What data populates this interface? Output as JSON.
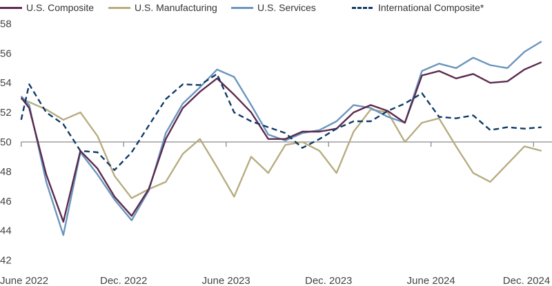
{
  "chart_data": {
    "type": "line",
    "title": "",
    "xlabel": "",
    "ylabel": "",
    "ylim": [
      42,
      58
    ],
    "yticks": [
      42,
      44,
      46,
      48,
      50,
      52,
      54,
      56,
      58
    ],
    "reference_line": 50,
    "grid": false,
    "legend_position": "top",
    "xticks": [
      {
        "date": "2022-06-01",
        "label": "June 2022"
      },
      {
        "date": "2022-12-01",
        "label": "Dec. 2022"
      },
      {
        "date": "2023-06-01",
        "label": "June 2023"
      },
      {
        "date": "2023-12-01",
        "label": "Dec. 2023"
      },
      {
        "date": "2024-06-01",
        "label": "June 2024"
      },
      {
        "date": "2024-12-01",
        "label": "Dec. 2024"
      }
    ],
    "x": [
      "2022-06-01",
      "2022-06-15",
      "2022-07-15",
      "2022-08-15",
      "2022-09-15",
      "2022-10-15",
      "2022-11-15",
      "2022-12-15",
      "2023-01-15",
      "2023-02-15",
      "2023-03-15",
      "2023-04-15",
      "2023-05-15",
      "2023-06-15",
      "2023-07-15",
      "2023-08-15",
      "2023-09-15",
      "2023-10-15",
      "2023-11-15",
      "2023-12-15",
      "2024-01-15",
      "2024-02-15",
      "2024-03-15",
      "2024-04-15",
      "2024-05-15",
      "2024-06-15",
      "2024-07-15",
      "2024-08-15",
      "2024-09-15",
      "2024-10-15",
      "2024-11-15",
      "2024-12-15"
    ],
    "series": [
      {
        "name": "U.S. Composite",
        "color": "#5b2a4c",
        "dashed": false,
        "values": [
          53.0,
          52.3,
          47.8,
          44.6,
          49.4,
          48.2,
          46.3,
          45.0,
          46.8,
          50.2,
          52.3,
          53.4,
          54.3,
          53.2,
          52.0,
          50.2,
          50.2,
          50.7,
          50.7,
          50.9,
          52.0,
          52.5,
          52.1,
          51.3,
          54.5,
          54.8,
          54.3,
          54.6,
          54.0,
          54.1,
          54.9,
          55.4
        ]
      },
      {
        "name": "U.S. Manufacturing",
        "color": "#b7ac80",
        "dashed": false,
        "values": [
          52.9,
          52.7,
          52.2,
          51.5,
          52.0,
          50.4,
          47.7,
          46.2,
          46.8,
          47.3,
          49.2,
          50.2,
          48.3,
          46.3,
          49.0,
          47.9,
          49.8,
          50.0,
          49.4,
          47.9,
          50.7,
          52.2,
          52.0,
          50.0,
          51.3,
          51.6,
          49.7,
          47.9,
          47.3,
          48.5,
          49.7,
          49.4
        ]
      },
      {
        "name": "U.S. Services",
        "color": "#6a95bf",
        "dashed": false,
        "values": [
          53.1,
          52.5,
          47.3,
          43.7,
          49.3,
          47.8,
          46.1,
          44.7,
          46.7,
          50.6,
          52.6,
          53.7,
          54.9,
          54.4,
          52.5,
          50.5,
          50.1,
          50.6,
          50.8,
          51.4,
          52.5,
          52.3,
          51.7,
          51.3,
          54.8,
          55.3,
          55.0,
          55.7,
          55.2,
          55.0,
          56.1,
          56.8
        ]
      },
      {
        "name": "International Composite*",
        "color": "#0f3a66",
        "dashed": true,
        "values": [
          51.5,
          53.9,
          52.0,
          51.2,
          49.4,
          49.3,
          48.1,
          49.3,
          51.1,
          52.9,
          53.9,
          53.85,
          54.6,
          52.0,
          51.4,
          51.0,
          50.6,
          49.6,
          50.2,
          50.9,
          51.4,
          51.4,
          52.1,
          52.6,
          53.3,
          51.7,
          51.6,
          51.8,
          50.8,
          51.0,
          50.9,
          51.0
        ]
      }
    ]
  }
}
